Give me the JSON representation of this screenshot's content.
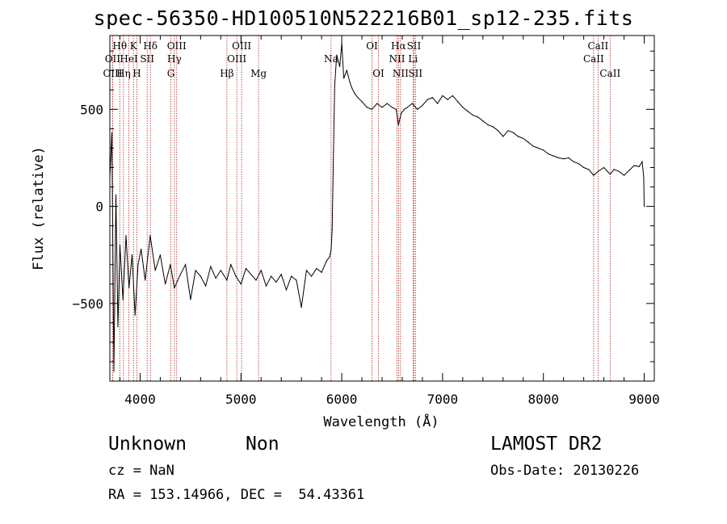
{
  "chart_data": {
    "type": "line",
    "title": "spec-56350-HD100510N522216B01_sp12-235.fits",
    "xlabel": "Wavelength (Å)",
    "ylabel": "Flux (relative)",
    "xlim": [
      3700,
      9100
    ],
    "ylim": [
      -900,
      880
    ],
    "x_ticks": [
      4000,
      5000,
      6000,
      7000,
      8000,
      9000
    ],
    "y_ticks": [
      -500,
      0,
      500
    ],
    "series": [
      {
        "x": [
          3700,
          3720,
          3740,
          3760,
          3780,
          3800,
          3830,
          3860,
          3890,
          3920,
          3950,
          3980,
          4010,
          4050,
          4100,
          4150,
          4200,
          4250,
          4300,
          4340,
          4400,
          4450,
          4500,
          4550,
          4600,
          4650,
          4700,
          4750,
          4800,
          4861,
          4900,
          4950,
          5000,
          5050,
          5100,
          5150,
          5200,
          5250,
          5300,
          5350,
          5400,
          5450,
          5500,
          5550,
          5600,
          5650,
          5700,
          5750,
          5800,
          5850,
          5880,
          5895,
          5905,
          5915,
          5930,
          5950,
          5980,
          6000,
          6020,
          6050,
          6080,
          6100,
          6130,
          6160,
          6200,
          6250,
          6300,
          6350,
          6400,
          6450,
          6500,
          6540,
          6563,
          6590,
          6620,
          6650,
          6700,
          6750,
          6800,
          6850,
          6900,
          6950,
          7000,
          7050,
          7100,
          7150,
          7200,
          7250,
          7300,
          7350,
          7400,
          7450,
          7500,
          7550,
          7600,
          7650,
          7700,
          7750,
          7800,
          7850,
          7900,
          7950,
          8000,
          8050,
          8100,
          8150,
          8200,
          8250,
          8300,
          8350,
          8400,
          8450,
          8498,
          8542,
          8600,
          8662,
          8700,
          8750,
          8800,
          8850,
          8900,
          8950,
          8980,
          8995,
          9000
        ],
        "y": [
          150,
          380,
          -850,
          60,
          -620,
          -200,
          -480,
          -150,
          -420,
          -250,
          -560,
          -300,
          -220,
          -380,
          -150,
          -330,
          -250,
          -400,
          -300,
          -420,
          -350,
          -300,
          -480,
          -330,
          -360,
          -410,
          -310,
          -370,
          -330,
          -380,
          -300,
          -360,
          -400,
          -320,
          -350,
          -380,
          -330,
          -410,
          -360,
          -390,
          -350,
          -430,
          -360,
          -380,
          -520,
          -330,
          -360,
          -320,
          -340,
          -280,
          -260,
          -220,
          -120,
          200,
          620,
          780,
          720,
          840,
          660,
          700,
          640,
          610,
          580,
          560,
          540,
          510,
          500,
          530,
          510,
          530,
          510,
          500,
          420,
          480,
          500,
          510,
          530,
          500,
          520,
          550,
          560,
          530,
          570,
          550,
          570,
          540,
          510,
          490,
          470,
          460,
          440,
          420,
          410,
          390,
          360,
          390,
          380,
          360,
          350,
          330,
          310,
          300,
          290,
          270,
          260,
          250,
          245,
          250,
          230,
          220,
          200,
          190,
          160,
          180,
          200,
          165,
          190,
          180,
          160,
          185,
          210,
          205,
          230,
          150,
          0
        ]
      }
    ],
    "line_markers": [
      {
        "label": "Hθ",
        "wavelength": 3798,
        "row": 1
      },
      {
        "label": "OII",
        "wavelength": 3727,
        "row": 2
      },
      {
        "label": "OIII",
        "wavelength": 3728,
        "row": 3
      },
      {
        "label": "K",
        "wavelength": 3934,
        "row": 1
      },
      {
        "label": "HeI",
        "wavelength": 3889,
        "row": 2
      },
      {
        "label": "Hη",
        "wavelength": 3835,
        "row": 3
      },
      {
        "label": "SII",
        "wavelength": 4070,
        "row": 2
      },
      {
        "label": "H",
        "wavelength": 3968,
        "row": 3
      },
      {
        "label": "Hδ",
        "wavelength": 4102,
        "row": 1
      },
      {
        "label": "OIII",
        "wavelength": 4363,
        "row": 1
      },
      {
        "label": "Hγ",
        "wavelength": 4340,
        "row": 2
      },
      {
        "label": "G",
        "wavelength": 4305,
        "row": 3
      },
      {
        "label": "OIII",
        "wavelength": 5007,
        "row": 1
      },
      {
        "label": "OIII",
        "wavelength": 4959,
        "row": 2
      },
      {
        "label": "Hβ",
        "wavelength": 4861,
        "row": 3
      },
      {
        "label": "Mg",
        "wavelength": 5175,
        "row": 3
      },
      {
        "label": "Na",
        "wavelength": 5894,
        "row": 2
      },
      {
        "label": "OI",
        "wavelength": 6300,
        "row": 1
      },
      {
        "label": "OI",
        "wavelength": 6364,
        "row": 3
      },
      {
        "label": "Hα",
        "wavelength": 6563,
        "row": 1
      },
      {
        "label": "SII",
        "wavelength": 6716,
        "row": 1
      },
      {
        "label": "NII",
        "wavelength": 6548,
        "row": 2
      },
      {
        "label": "Li",
        "wavelength": 6707,
        "row": 2
      },
      {
        "label": "NII",
        "wavelength": 6583,
        "row": 3
      },
      {
        "label": "SII",
        "wavelength": 6731,
        "row": 3
      },
      {
        "label": "CaII",
        "wavelength": 8542,
        "row": 1
      },
      {
        "label": "CaII",
        "wavelength": 8498,
        "row": 2
      },
      {
        "label": "CaII",
        "wavelength": 8662,
        "row": 3
      }
    ],
    "grid": false
  },
  "info": {
    "obj_class": "Unknown",
    "obj_subclass": "Non",
    "survey": "LAMOST DR2",
    "cz": "cz = NaN",
    "obs_date": "Obs-Date: 20130226",
    "ra_dec": "RA = 153.14966, DEC =  54.43361"
  },
  "colors": {
    "spectrum": "#000000",
    "line_markers": "#b22222",
    "background": "#ffffff"
  }
}
